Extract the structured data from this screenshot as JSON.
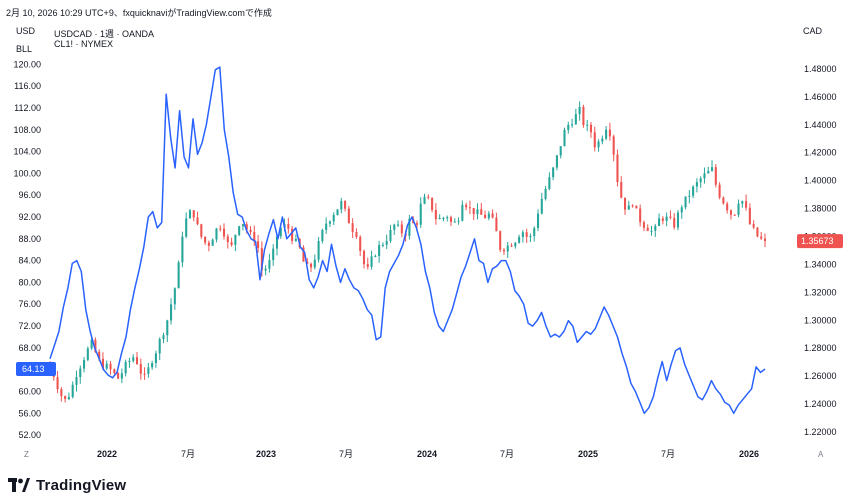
{
  "header": {
    "timestamp_text": "2月 10, 2026 10:29 UTC+9、fxquicknaviがTradingView.comで作成"
  },
  "left_axis_labels": {
    "top": "USD",
    "second": "BLL"
  },
  "right_axis_label": "CAD",
  "legend": {
    "usdcad_line": "USDCAD · 1週 · OANDA",
    "cl_line": "CL1! · NYMEX"
  },
  "corner_labels": {
    "left": "Z",
    "right": "A"
  },
  "footer": {
    "brand": "TradingView"
  },
  "colors": {
    "up": "#26a69a",
    "down": "#ef5350",
    "oil_line": "#2962ff",
    "badge_left": "#2962ff",
    "badge_right": "#ef5350",
    "axis_text": "#131722"
  },
  "chart_data": [
    {
      "type": "candlestick",
      "name": "USDCAD",
      "subtitle": "1週 · OANDA",
      "axis": "right",
      "ylim": [
        1.21,
        1.495
      ],
      "yticks": [
        "1.48000",
        "1.46000",
        "1.44000",
        "1.42000",
        "1.40000",
        "1.38000",
        "1.36000",
        "1.34000",
        "1.32000",
        "1.30000",
        "1.28000",
        "1.26000",
        "1.24000",
        "1.22000"
      ],
      "last_value": "1.35673",
      "series_path": [
        1.268,
        1.258,
        1.247,
        1.242,
        1.25,
        1.262,
        1.27,
        1.278,
        1.284,
        1.272,
        1.268,
        1.266,
        1.262,
        1.258,
        1.266,
        1.271,
        1.275,
        1.264,
        1.258,
        1.27,
        1.278,
        1.288,
        1.298,
        1.314,
        1.33,
        1.362,
        1.376,
        1.378,
        1.365,
        1.356,
        1.355,
        1.362,
        1.369,
        1.362,
        1.349,
        1.362,
        1.373,
        1.366,
        1.36,
        1.358,
        1.336,
        1.338,
        1.346,
        1.363,
        1.368,
        1.366,
        1.357,
        1.353,
        1.34,
        1.336,
        1.345,
        1.358,
        1.369,
        1.374,
        1.379,
        1.384,
        1.375,
        1.366,
        1.362,
        1.342,
        1.336,
        1.346,
        1.352,
        1.356,
        1.361,
        1.368,
        1.365,
        1.361,
        1.373,
        1.366,
        1.382,
        1.388,
        1.382,
        1.372,
        1.373,
        1.375,
        1.368,
        1.372,
        1.388,
        1.38,
        1.378,
        1.376,
        1.374,
        1.376,
        1.367,
        1.352,
        1.352,
        1.355,
        1.358,
        1.365,
        1.36,
        1.359,
        1.376,
        1.389,
        1.398,
        1.408,
        1.42,
        1.434,
        1.441,
        1.445,
        1.45,
        1.438,
        1.437,
        1.424,
        1.43,
        1.439,
        1.433,
        1.403,
        1.386,
        1.378,
        1.385,
        1.374,
        1.369,
        1.366,
        1.362,
        1.372,
        1.374,
        1.371,
        1.368,
        1.381,
        1.386,
        1.392,
        1.397,
        1.402,
        1.405,
        1.408,
        1.393,
        1.386,
        1.38,
        1.374,
        1.386,
        1.385,
        1.37,
        1.363,
        1.358,
        1.357
      ]
    },
    {
      "type": "line",
      "name": "CL1!",
      "subtitle": "NYMEX",
      "axis": "left",
      "ylim": [
        50.0,
        123.0
      ],
      "yticks": [
        "120.00",
        "116.00",
        "112.00",
        "108.00",
        "104.00",
        "100.00",
        "96.00",
        "92.00",
        "88.00",
        "84.00",
        "80.00",
        "76.00",
        "72.00",
        "68.00",
        "64.00",
        "60.00",
        "56.00",
        "52.00"
      ],
      "last_value": "64.13",
      "values": [
        66.0,
        68.5,
        71.0,
        75.5,
        79.0,
        83.5,
        84.0,
        82.0,
        75.0,
        71.0,
        68.0,
        66.0,
        64.0,
        63.0,
        62.5,
        63.5,
        67.0,
        70.0,
        75.0,
        79.0,
        82.5,
        86.5,
        92.0,
        93.0,
        90.0,
        91.0,
        114.5,
        106.5,
        101.0,
        111.5,
        103.0,
        101.0,
        110.0,
        103.5,
        105.5,
        109.0,
        114.0,
        119.0,
        119.5,
        108.0,
        103.0,
        96.5,
        92.5,
        92.0,
        89.5,
        88.0,
        87.5,
        80.5,
        86.0,
        89.0,
        91.5,
        88.0,
        92.0,
        88.0,
        89.0,
        90.0,
        86.5,
        85.5,
        80.5,
        79.0,
        81.0,
        84.0,
        82.0,
        87.0,
        83.0,
        80.0,
        82.5,
        80.5,
        79.0,
        78.5,
        77.0,
        75.0,
        74.0,
        69.5,
        70.0,
        79.0,
        82.0,
        83.5,
        85.0,
        87.0,
        90.5,
        92.0,
        90.0,
        87.0,
        82.0,
        79.0,
        74.5,
        72.0,
        71.0,
        73.0,
        75.0,
        78.0,
        81.0,
        83.0,
        85.5,
        88.0,
        84.0,
        83.5,
        80.0,
        82.5,
        83.0,
        84.0,
        84.0,
        82.0,
        78.5,
        77.5,
        76.0,
        72.5,
        72.0,
        73.0,
        74.5,
        72.0,
        70.0,
        70.5,
        70.0,
        71.0,
        73.0,
        72.0,
        69.0,
        70.0,
        71.0,
        70.5,
        71.5,
        73.5,
        75.5,
        74.0,
        72.0,
        70.0,
        67.0,
        64.5,
        61.5,
        60.0,
        58.0,
        56.0,
        57.0,
        59.0,
        62.5,
        65.5,
        62.0,
        65.0,
        67.5,
        68.0,
        65.0,
        63.0,
        61.0,
        59.0,
        58.5,
        60.0,
        62.0,
        60.5,
        59.5,
        58.0,
        57.5,
        56.0,
        57.5,
        58.5,
        59.5,
        60.5,
        64.5,
        63.5,
        64.13
      ]
    }
  ],
  "x_axis": {
    "labels": [
      "2022",
      "7月",
      "2023",
      "7月",
      "2024",
      "7月",
      "2025",
      "7月",
      "2026"
    ],
    "bold": [
      "2022",
      "2023",
      "2024",
      "2025",
      "2026"
    ]
  }
}
